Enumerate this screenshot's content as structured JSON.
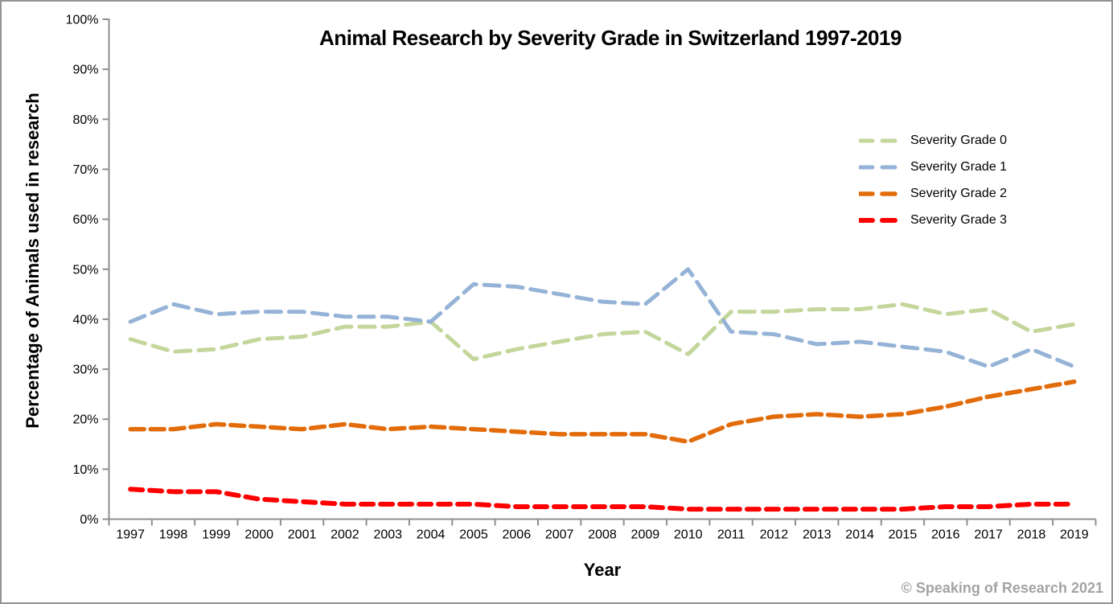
{
  "window": {
    "copyright": "© Speaking of Research 2021"
  },
  "chart_data": {
    "type": "line",
    "title": "Animal Research by Severity Grade in Switzerland 1997-2019",
    "xlabel": "Year",
    "ylabel": "Percentage of Animals used in research",
    "ylim": [
      0,
      100
    ],
    "y_tick_step": 10,
    "y_tick_labels": [
      "0%",
      "10%",
      "20%",
      "30%",
      "40%",
      "50%",
      "60%",
      "70%",
      "80%",
      "90%",
      "100%"
    ],
    "grid": false,
    "legend_position": "upper right",
    "line_style": "dashed",
    "axis_color": "#8f8f8f",
    "x": [
      "1997",
      "1998",
      "1999",
      "2000",
      "2001",
      "2002",
      "2003",
      "2004",
      "2005",
      "2006",
      "2007",
      "2008",
      "2009",
      "2010",
      "2011",
      "2012",
      "2013",
      "2014",
      "2015",
      "2016",
      "2017",
      "2018",
      "2019"
    ],
    "series": [
      {
        "name": "Severity Grade 0",
        "color": "#c3d69b",
        "dash": "19 10",
        "width": 5,
        "values": [
          36,
          33.5,
          34,
          36,
          36.5,
          38.5,
          38.5,
          39.5,
          32,
          34,
          35.5,
          37,
          37.5,
          33,
          41.5,
          41.5,
          42,
          42,
          43,
          41,
          42,
          37.5,
          39
        ]
      },
      {
        "name": "Severity Grade 1",
        "color": "#95b3d7",
        "dash": "19 10",
        "width": 5,
        "values": [
          39.5,
          43,
          41,
          41.5,
          41.5,
          40.5,
          40.5,
          39.5,
          47,
          46.5,
          45,
          43.5,
          43,
          50,
          37.5,
          37,
          35,
          35.5,
          34.5,
          33.5,
          30.5,
          34,
          30.5
        ]
      },
      {
        "name": "Severity Grade 2",
        "color": "#e36c0a",
        "dash": "17 8",
        "width": 5.5,
        "values": [
          18,
          18,
          19,
          18.5,
          18,
          19,
          18,
          18.5,
          18,
          17.5,
          17,
          17,
          17,
          15.5,
          19,
          20.5,
          21,
          20.5,
          21,
          22.5,
          24.5,
          26,
          27.5
        ]
      },
      {
        "name": "Severity Grade 3",
        "color": "#ff0000",
        "dash": "15 9",
        "width": 6,
        "values": [
          6,
          5.5,
          5.5,
          4,
          3.5,
          3,
          3,
          3,
          3,
          2.5,
          2.5,
          2.5,
          2.5,
          2,
          2,
          2,
          2,
          2,
          2,
          2.5,
          2.5,
          3,
          3
        ]
      }
    ]
  }
}
